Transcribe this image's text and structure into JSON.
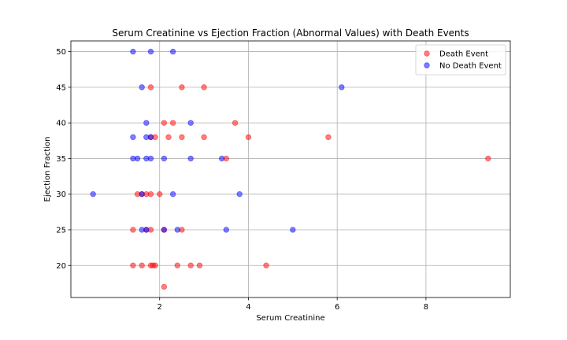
{
  "chart_data": {
    "type": "scatter",
    "title": "Serum Creatinine vs Ejection Fraction (Abnormal Values) with Death Events",
    "xlabel": "Serum Creatinine",
    "ylabel": "Ejection Fraction",
    "xlim": [
      0.0,
      9.9
    ],
    "ylim": [
      15.5,
      51.5
    ],
    "xticks": [
      2,
      4,
      6,
      8
    ],
    "yticks": [
      20,
      25,
      30,
      35,
      40,
      45,
      50
    ],
    "grid": true,
    "legend_position": "top-right",
    "series": [
      {
        "name": "Death Event",
        "color": "#ff0000",
        "points": [
          [
            1.8,
            45
          ],
          [
            2.5,
            45
          ],
          [
            3.0,
            45
          ],
          [
            2.1,
            40
          ],
          [
            2.3,
            40
          ],
          [
            3.7,
            40
          ],
          [
            1.8,
            38
          ],
          [
            1.9,
            38
          ],
          [
            2.2,
            38
          ],
          [
            2.5,
            38
          ],
          [
            3.0,
            38
          ],
          [
            4.0,
            38
          ],
          [
            5.8,
            38
          ],
          [
            3.5,
            35
          ],
          [
            9.4,
            35
          ],
          [
            1.5,
            30
          ],
          [
            1.6,
            30
          ],
          [
            1.7,
            30
          ],
          [
            1.8,
            30
          ],
          [
            2.0,
            30
          ],
          [
            1.4,
            25
          ],
          [
            1.7,
            25
          ],
          [
            1.8,
            25
          ],
          [
            2.1,
            25
          ],
          [
            2.5,
            25
          ],
          [
            1.4,
            20
          ],
          [
            1.6,
            20
          ],
          [
            1.8,
            20
          ],
          [
            1.85,
            20
          ],
          [
            1.9,
            20
          ],
          [
            2.4,
            20
          ],
          [
            2.7,
            20
          ],
          [
            2.9,
            20
          ],
          [
            4.4,
            20
          ],
          [
            2.1,
            17
          ]
        ]
      },
      {
        "name": "No Death Event",
        "color": "#0000ff",
        "points": [
          [
            1.4,
            50
          ],
          [
            1.8,
            50
          ],
          [
            2.3,
            50
          ],
          [
            1.6,
            45
          ],
          [
            6.1,
            45
          ],
          [
            1.7,
            40
          ],
          [
            2.7,
            40
          ],
          [
            1.4,
            38
          ],
          [
            1.7,
            38
          ],
          [
            1.8,
            38
          ],
          [
            1.4,
            35
          ],
          [
            1.5,
            35
          ],
          [
            1.7,
            35
          ],
          [
            1.8,
            35
          ],
          [
            2.1,
            35
          ],
          [
            2.7,
            35
          ],
          [
            3.4,
            35
          ],
          [
            0.5,
            30
          ],
          [
            1.6,
            30
          ],
          [
            2.3,
            30
          ],
          [
            3.8,
            30
          ],
          [
            1.6,
            25
          ],
          [
            1.7,
            25
          ],
          [
            2.1,
            25
          ],
          [
            2.4,
            25
          ],
          [
            3.5,
            25
          ],
          [
            5.0,
            25
          ]
        ]
      }
    ]
  }
}
